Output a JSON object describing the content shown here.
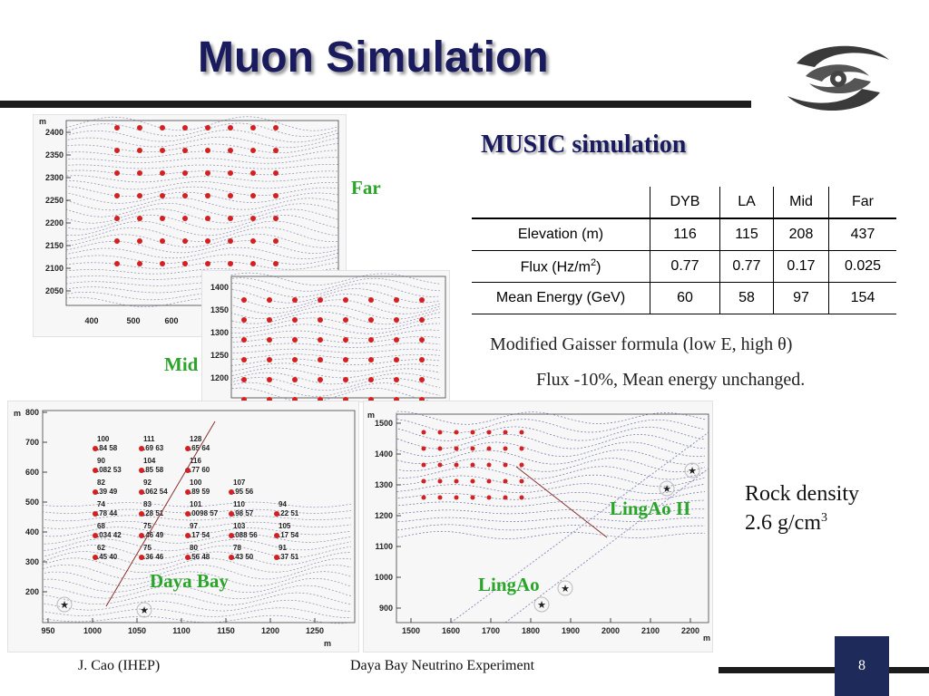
{
  "slide": {
    "title": "Muon Simulation",
    "page_number": "8",
    "footer_author": "J. Cao (IHEP)",
    "footer_experiment": "Daya Bay Neutrino Experiment"
  },
  "colors": {
    "title": "#1a1a5e",
    "site_label": "#2aa52a",
    "page_box": "#1e2a5a"
  },
  "logo": {
    "icon": "ihep-swirl-logo-icon"
  },
  "plots": {
    "far": {
      "label": "Far",
      "y_unit": "m",
      "y_ticks": [
        "2400",
        "2350",
        "2300",
        "2250",
        "2200",
        "2150",
        "2100",
        "2050"
      ],
      "x_ticks": [
        "400",
        "500",
        "600"
      ]
    },
    "mid": {
      "label": "Mid",
      "y_ticks": [
        "1400",
        "1350",
        "1300",
        "1250",
        "1200"
      ]
    },
    "dayabay": {
      "label": "Daya Bay",
      "y_unit": "m",
      "x_unit": "m",
      "y_ticks": [
        "800",
        "700",
        "600",
        "500",
        "400",
        "300",
        "200"
      ],
      "x_ticks": [
        "950",
        "1000",
        "1050",
        "1100",
        "1150",
        "1200",
        "1250"
      ],
      "grid_points": [
        {
          "n": "100",
          "v": ".84 58"
        },
        {
          "n": "111",
          "v": ".69 63"
        },
        {
          "n": "128",
          "v": ".65 64"
        },
        {
          "n": "90",
          "v": ".082 53"
        },
        {
          "n": "104",
          "v": ".85 58"
        },
        {
          "n": "116",
          "v": ".77 60"
        },
        {
          "n": "82",
          "v": ".39 49"
        },
        {
          "n": "92",
          "v": ".062 54"
        },
        {
          "n": "100",
          "v": ".89 59"
        },
        {
          "n": "107",
          "v": ".95 56"
        },
        {
          "n": "74",
          "v": ".78 44"
        },
        {
          "n": "83",
          "v": ".28 51"
        },
        {
          "n": "101",
          "v": ".0098 57"
        },
        {
          "n": "110",
          "v": ".98 57"
        },
        {
          "n": "94",
          "v": ".22 51"
        },
        {
          "n": "68",
          "v": ".034 42"
        },
        {
          "n": "75",
          "v": ".46 49"
        },
        {
          "n": "97",
          "v": ".17 54"
        },
        {
          "n": "103",
          "v": ".088 56"
        },
        {
          "n": "105",
          "v": ".17 54"
        },
        {
          "n": "62",
          "v": ".45 40"
        },
        {
          "n": "75",
          "v": ".36 46"
        },
        {
          "n": "80",
          "v": ".56 48"
        },
        {
          "n": "78",
          "v": ".43 50"
        },
        {
          "n": "91",
          "v": ".37 51"
        }
      ]
    },
    "lingao": {
      "label": "LingAo",
      "label2": "LingAo II",
      "y_unit": "m",
      "x_unit": "m",
      "y_ticks": [
        "1500",
        "1400",
        "1300",
        "1200",
        "1100",
        "1000",
        "900"
      ],
      "x_ticks": [
        "1500",
        "1600",
        "1700",
        "1800",
        "1900",
        "2000",
        "2100",
        "2200"
      ]
    }
  },
  "music": {
    "heading": "MUSIC simulation",
    "columns": [
      "",
      "DYB",
      "LA",
      "Mid",
      "Far"
    ],
    "rows": [
      {
        "label": "Elevation (m)",
        "values": [
          "116",
          "115",
          "208",
          "437"
        ]
      },
      {
        "label_pre": "Flux (Hz/m",
        "label_sup": "2",
        "label_post": ")",
        "values": [
          "0.77",
          "0.77",
          "0.17",
          "0.025"
        ]
      },
      {
        "label": "Mean Energy (GeV)",
        "values": [
          "60",
          "58",
          "97",
          "154"
        ]
      }
    ],
    "note_formula": "Modified Gaisser formula (low E, high θ)",
    "note_flux": "Flux -10%,  Mean energy unchanged."
  },
  "rock": {
    "line1": "Rock density",
    "line2_pre": "2.6 g/cm",
    "line2_sup": "3"
  }
}
